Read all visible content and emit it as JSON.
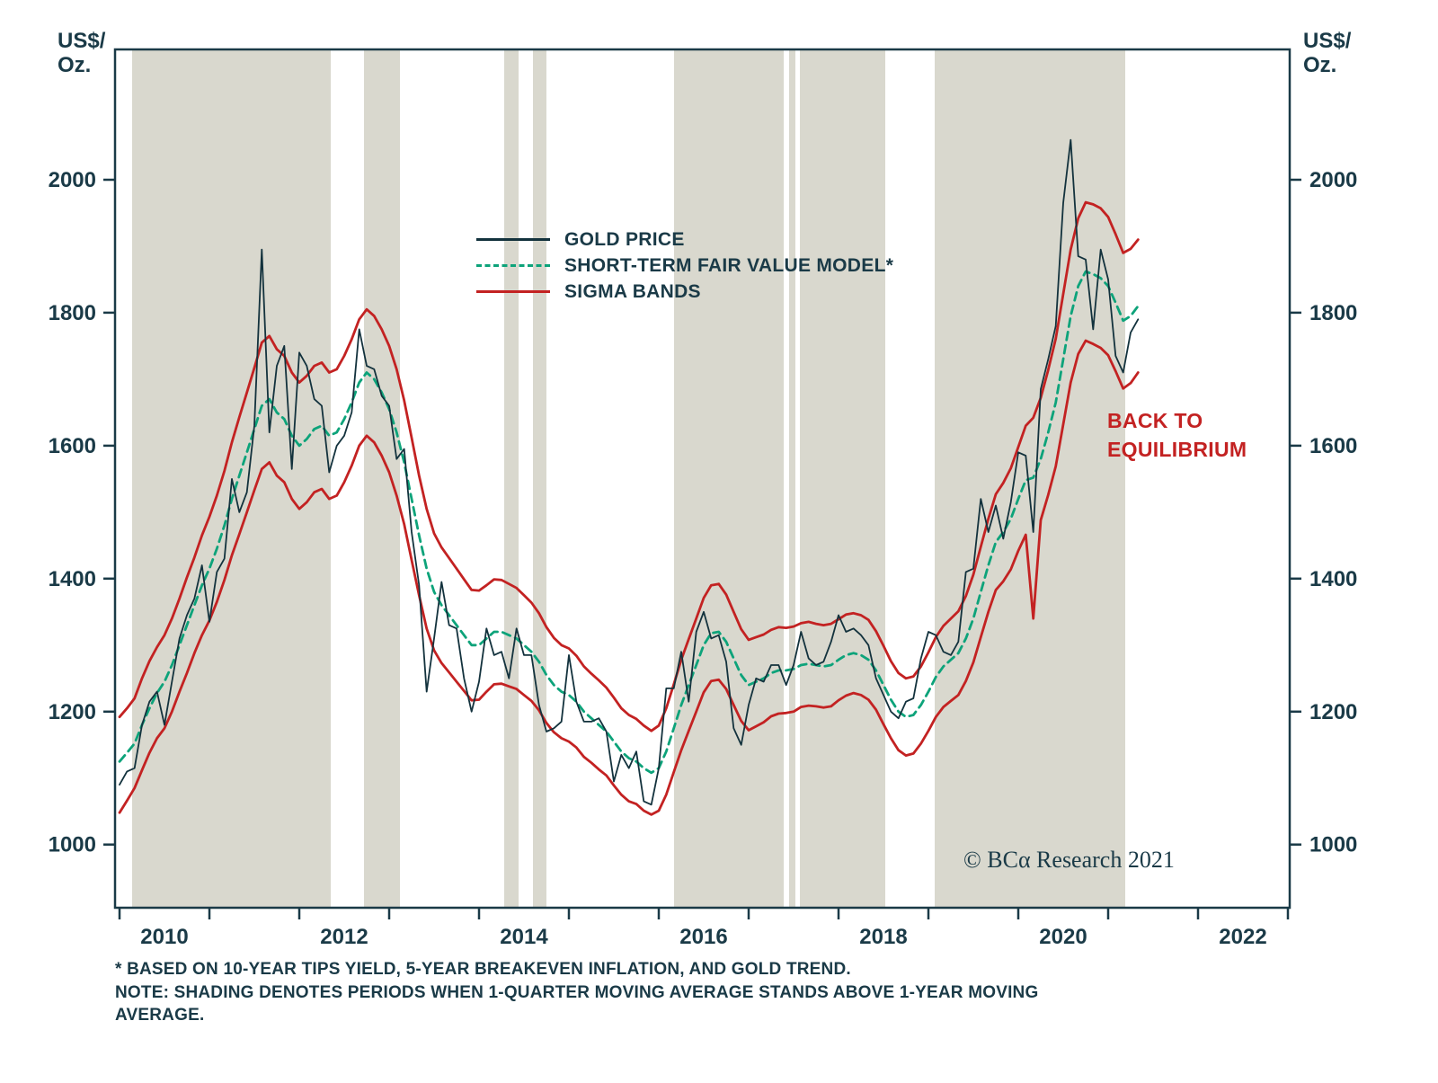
{
  "colors": {
    "frame": "#1A3A47",
    "text": "#1A3A47",
    "shading": "#D9D8CE",
    "gold_line": "#13323D",
    "model_line": "#0DA37A",
    "sigma_band": "#C32222",
    "annotation_red": "#C32222"
  },
  "legend": [
    {
      "label": "GOLD PRICE",
      "color": "#13323D",
      "style": "solid"
    },
    {
      "label": "SHORT-TERM FAIR VALUE MODEL*",
      "color": "#0DA37A",
      "style": "dashed"
    },
    {
      "label": "SIGMA BANDS",
      "color": "#C32222",
      "style": "solid"
    }
  ],
  "annotations": {
    "back_to_equilibrium_lines": [
      "BACK TO",
      "EQUILIBRIUM"
    ],
    "copyright": "© BCα Research 2021"
  },
  "footnotes": [
    "* BASED ON 10-YEAR TIPS YIELD, 5-YEAR BREAKEVEN INFLATION, AND GOLD TREND.",
    "NOTE: SHADING DENOTES PERIODS WHEN 1-QUARTER MOVING AVERAGE STANDS ABOVE 1-YEAR MOVING AVERAGE."
  ],
  "chart_data": {
    "type": "line",
    "title": "",
    "x_start": 2010.0,
    "x_step_years": 0.0833333,
    "x_axis": {
      "range": [
        2009.95,
        2023.02
      ],
      "tick_years": [
        2010,
        2011,
        2012,
        2013,
        2014,
        2015,
        2016,
        2017,
        2018,
        2019,
        2020,
        2021,
        2022,
        2023
      ],
      "label_years": [
        2010,
        2012,
        2014,
        2016,
        2018,
        2020,
        2022
      ]
    },
    "y_axis": {
      "range": [
        905,
        2196
      ],
      "ticks": [
        1000,
        1200,
        1400,
        1600,
        1800,
        2000
      ],
      "unit": "US$/Oz.",
      "unit_lines": [
        "US$/",
        "Oz."
      ]
    },
    "shading_note": "Shading denotes periods when 1-quarter moving average stands above 1-year moving average",
    "shaded_periods": [
      [
        2010.14,
        2012.35
      ],
      [
        2012.72,
        2013.12
      ],
      [
        2014.28,
        2014.44
      ],
      [
        2014.6,
        2014.75
      ],
      [
        2016.17,
        2017.39
      ],
      [
        2017.45,
        2017.52
      ],
      [
        2017.57,
        2018.52
      ],
      [
        2019.07,
        2021.19
      ]
    ],
    "series": [
      {
        "name": "SIGMA BANDS (UPPER)",
        "color": "#C32222",
        "width": 2.8,
        "dash": null,
        "values": [
          1192,
          1205,
          1220,
          1250,
          1276,
          1297,
          1315,
          1340,
          1370,
          1402,
          1432,
          1465,
          1493,
          1525,
          1562,
          1605,
          1643,
          1680,
          1717,
          1755,
          1765,
          1745,
          1735,
          1710,
          1695,
          1705,
          1720,
          1725,
          1710,
          1715,
          1735,
          1760,
          1790,
          1805,
          1795,
          1775,
          1750,
          1715,
          1668,
          1612,
          1555,
          1505,
          1468,
          1447,
          1431,
          1415,
          1399,
          1383,
          1382,
          1390,
          1399,
          1398,
          1392,
          1386,
          1375,
          1364,
          1348,
          1327,
          1311,
          1300,
          1295,
          1284,
          1268,
          1257,
          1247,
          1236,
          1221,
          1205,
          1195,
          1189,
          1179,
          1171,
          1179,
          1205,
          1241,
          1278,
          1309,
          1340,
          1371,
          1390,
          1392,
          1376,
          1350,
          1324,
          1308,
          1312,
          1316,
          1323,
          1327,
          1326,
          1328,
          1333,
          1335,
          1332,
          1330,
          1332,
          1339,
          1346,
          1348,
          1345,
          1338,
          1321,
          1299,
          1276,
          1258,
          1250,
          1253,
          1268,
          1289,
          1312,
          1329,
          1340,
          1351,
          1374,
          1406,
          1448,
          1490,
          1527,
          1544,
          1566,
          1598,
          1630,
          1642,
          1672,
          1714,
          1761,
          1828,
          1895,
          1942,
          1966,
          1963,
          1957,
          1944,
          1918,
          1890,
          1896,
          1910
        ]
      },
      {
        "name": "SIGMA BANDS (LOWER)",
        "color": "#C32222",
        "width": 2.8,
        "dash": null,
        "values": [
          1048,
          1066,
          1085,
          1112,
          1138,
          1160,
          1175,
          1200,
          1230,
          1258,
          1288,
          1315,
          1337,
          1365,
          1398,
          1435,
          1467,
          1500,
          1533,
          1565,
          1575,
          1555,
          1545,
          1520,
          1505,
          1515,
          1530,
          1535,
          1520,
          1525,
          1545,
          1570,
          1600,
          1615,
          1605,
          1585,
          1560,
          1525,
          1482,
          1428,
          1375,
          1325,
          1292,
          1273,
          1259,
          1245,
          1231,
          1217,
          1218,
          1230,
          1241,
          1242,
          1238,
          1234,
          1225,
          1216,
          1202,
          1183,
          1169,
          1160,
          1155,
          1146,
          1132,
          1123,
          1113,
          1104,
          1089,
          1075,
          1065,
          1061,
          1051,
          1045,
          1051,
          1075,
          1109,
          1142,
          1171,
          1200,
          1229,
          1246,
          1248,
          1234,
          1210,
          1186,
          1172,
          1178,
          1184,
          1193,
          1197,
          1198,
          1200,
          1207,
          1209,
          1208,
          1206,
          1208,
          1217,
          1224,
          1228,
          1225,
          1218,
          1203,
          1181,
          1160,
          1142,
          1134,
          1137,
          1152,
          1171,
          1192,
          1207,
          1216,
          1225,
          1246,
          1274,
          1312,
          1350,
          1383,
          1396,
          1414,
          1442,
          1466,
          1340,
          1488,
          1526,
          1569,
          1632,
          1695,
          1738,
          1758,
          1753,
          1747,
          1736,
          1712,
          1686,
          1694,
          1710
        ]
      },
      {
        "name": "SHORT-TERM FAIR VALUE MODEL",
        "color": "#0DA37A",
        "width": 2.8,
        "dash": [
          9,
          6
        ],
        "values": [
          1125,
          1138,
          1152,
          1180,
          1205,
          1228,
          1245,
          1270,
          1300,
          1330,
          1360,
          1390,
          1415,
          1445,
          1480,
          1520,
          1555,
          1590,
          1625,
          1660,
          1670,
          1650,
          1640,
          1615,
          1600,
          1610,
          1625,
          1630,
          1615,
          1620,
          1640,
          1665,
          1695,
          1710,
          1700,
          1680,
          1655,
          1620,
          1575,
          1520,
          1465,
          1415,
          1380,
          1360,
          1345,
          1330,
          1315,
          1300,
          1300,
          1310,
          1320,
          1320,
          1315,
          1310,
          1300,
          1290,
          1275,
          1255,
          1240,
          1230,
          1225,
          1215,
          1200,
          1190,
          1180,
          1170,
          1155,
          1140,
          1130,
          1125,
          1115,
          1108,
          1115,
          1140,
          1175,
          1210,
          1240,
          1270,
          1300,
          1318,
          1320,
          1305,
          1280,
          1255,
          1240,
          1245,
          1250,
          1258,
          1262,
          1262,
          1264,
          1270,
          1272,
          1270,
          1268,
          1270,
          1278,
          1285,
          1288,
          1285,
          1278,
          1262,
          1240,
          1218,
          1200,
          1192,
          1195,
          1210,
          1230,
          1252,
          1268,
          1278,
          1288,
          1310,
          1340,
          1380,
          1420,
          1455,
          1470,
          1490,
          1520,
          1548,
          1552,
          1580,
          1620,
          1665,
          1730,
          1795,
          1840,
          1862,
          1858,
          1852,
          1840,
          1815,
          1788,
          1795,
          1810
        ]
      },
      {
        "name": "GOLD PRICE",
        "color": "#13323D",
        "width": 1.8,
        "dash": null,
        "values": [
          1090,
          1110,
          1115,
          1180,
          1215,
          1230,
          1180,
          1245,
          1310,
          1345,
          1370,
          1420,
          1335,
          1410,
          1430,
          1550,
          1500,
          1530,
          1630,
          1895,
          1620,
          1720,
          1750,
          1565,
          1740,
          1720,
          1670,
          1660,
          1560,
          1600,
          1615,
          1650,
          1775,
          1720,
          1715,
          1675,
          1660,
          1580,
          1595,
          1470,
          1390,
          1230,
          1310,
          1395,
          1330,
          1325,
          1250,
          1200,
          1245,
          1325,
          1285,
          1290,
          1250,
          1325,
          1285,
          1285,
          1210,
          1170,
          1175,
          1185,
          1285,
          1215,
          1185,
          1185,
          1190,
          1170,
          1095,
          1135,
          1115,
          1140,
          1065,
          1060,
          1115,
          1235,
          1235,
          1290,
          1215,
          1320,
          1350,
          1310,
          1315,
          1275,
          1175,
          1150,
          1210,
          1250,
          1245,
          1270,
          1270,
          1240,
          1270,
          1320,
          1280,
          1270,
          1275,
          1305,
          1345,
          1320,
          1325,
          1315,
          1300,
          1250,
          1225,
          1200,
          1190,
          1215,
          1220,
          1280,
          1320,
          1315,
          1290,
          1285,
          1305,
          1410,
          1415,
          1520,
          1470,
          1510,
          1460,
          1515,
          1590,
          1585,
          1470,
          1685,
          1730,
          1780,
          1965,
          2060,
          1885,
          1880,
          1775,
          1895,
          1850,
          1735,
          1710,
          1770,
          1790
        ]
      }
    ]
  }
}
